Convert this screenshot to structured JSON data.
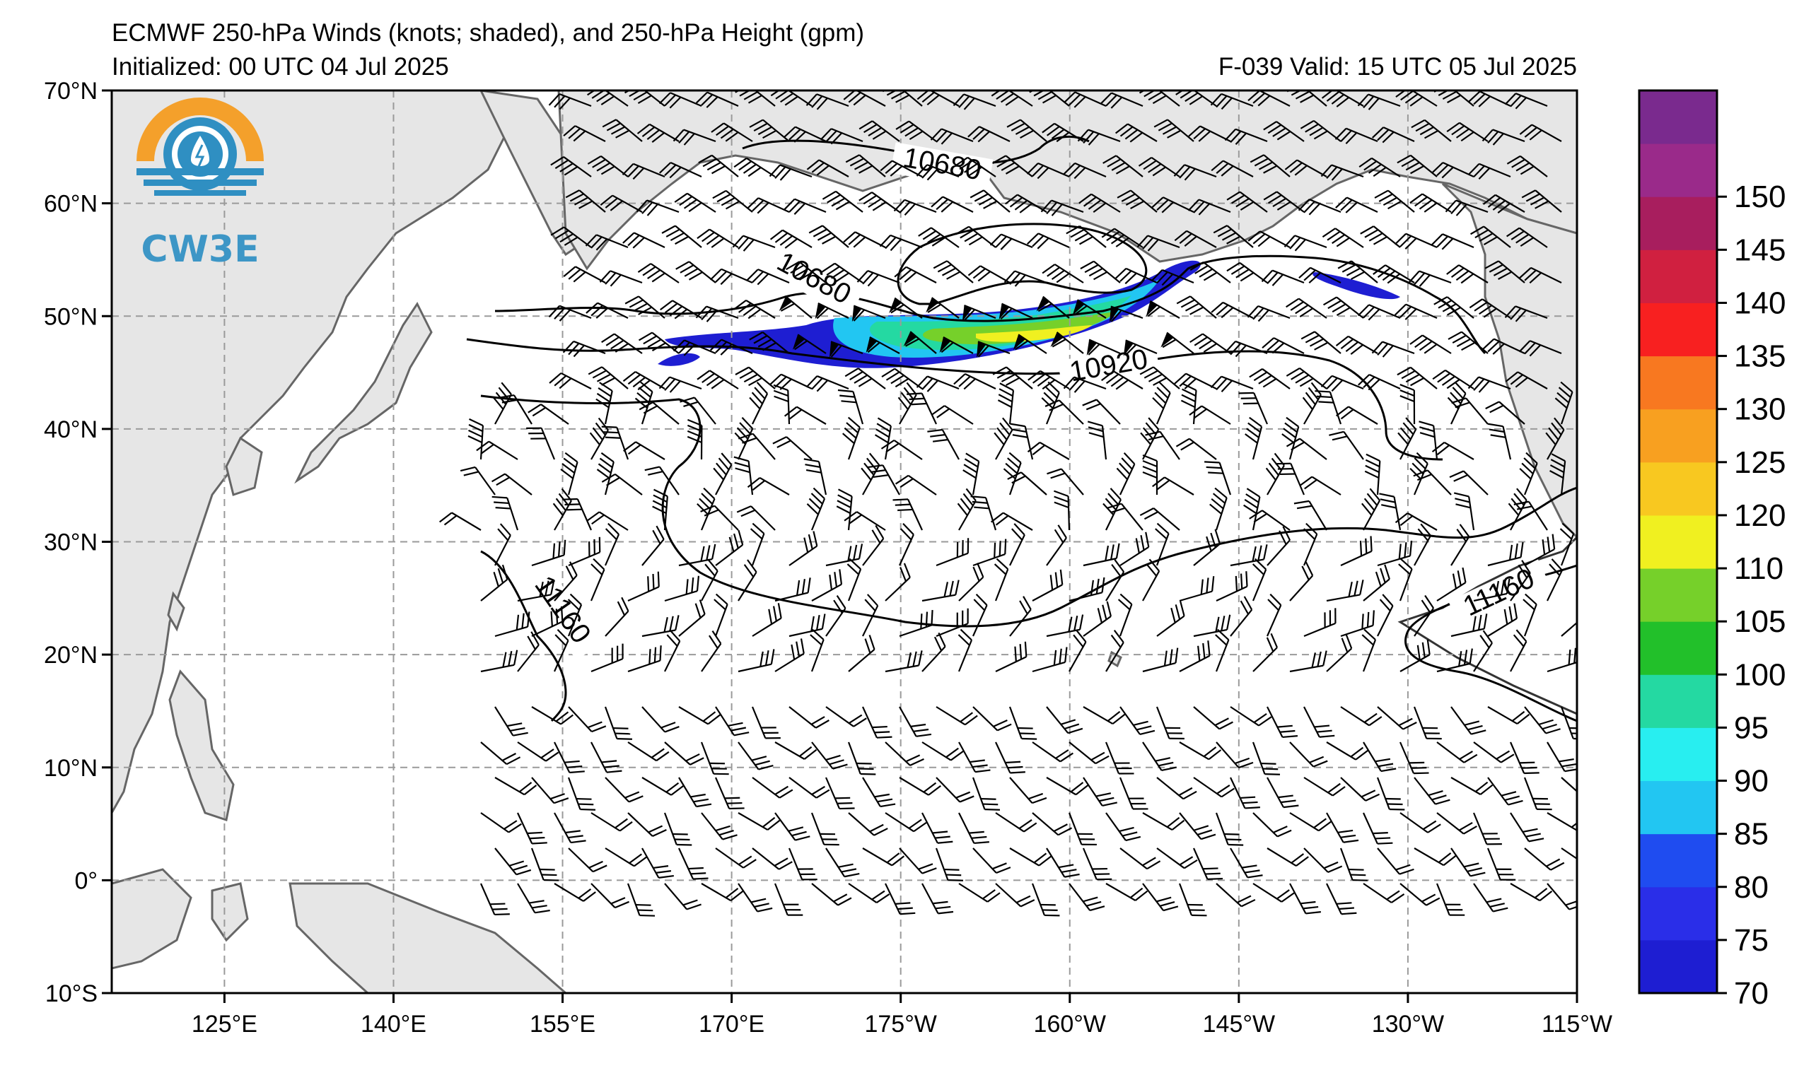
{
  "titles": {
    "line1": "ECMWF 250-hPa Winds (knots; shaded), and 250-hPa Height (gpm)",
    "line2_left": "Initialized: 00 UTC 04 Jul 2025",
    "line2_right": "F-039  Valid: 15 UTC 05 Jul 2025"
  },
  "logo": {
    "text": "CW3E",
    "icon": "cw3e-logo-icon",
    "colors": {
      "orange": "#f4a02b",
      "blue": "#2f8fc2"
    }
  },
  "axes": {
    "lat_labels": [
      "70°N",
      "60°N",
      "50°N",
      "40°N",
      "30°N",
      "20°N",
      "10°N",
      "0°",
      "10°S"
    ],
    "lon_labels": [
      "125°E",
      "140°E",
      "155°E",
      "170°E",
      "175°W",
      "160°W",
      "145°W",
      "130°W",
      "115°W"
    ],
    "lat_range": [
      -10,
      70
    ],
    "lon_range_east": [
      115,
      245
    ],
    "gridlines": "dashed-gray"
  },
  "colorbar": {
    "levels": [
      "70",
      "75",
      "80",
      "85",
      "90",
      "95",
      "100",
      "105",
      "110",
      "120",
      "125",
      "130",
      "135",
      "140",
      "145",
      "150"
    ],
    "colors": [
      "#1e1ed2",
      "#2a2ee8",
      "#1f4cf0",
      "#22c6f2",
      "#28eef0",
      "#24d9a2",
      "#22c02a",
      "#76d02a",
      "#f0f020",
      "#f8c820",
      "#f8a020",
      "#f87820",
      "#f82020",
      "#d02040",
      "#a81e5e",
      "#9a2a8a",
      "#7a2a8e"
    ]
  },
  "contours": [
    {
      "value": "10680",
      "label_text": "10680"
    },
    {
      "value": "10680b",
      "label_text": "10680"
    },
    {
      "value": "10920",
      "label_text": "10920"
    },
    {
      "value": "11160",
      "label_text": "11160"
    },
    {
      "value": "11160b",
      "label_text": "11160"
    }
  ],
  "colors": {
    "land": "#e6e6e6",
    "coast": "#666666",
    "grid": "#9a9a9a",
    "ocean": "#ffffff"
  }
}
